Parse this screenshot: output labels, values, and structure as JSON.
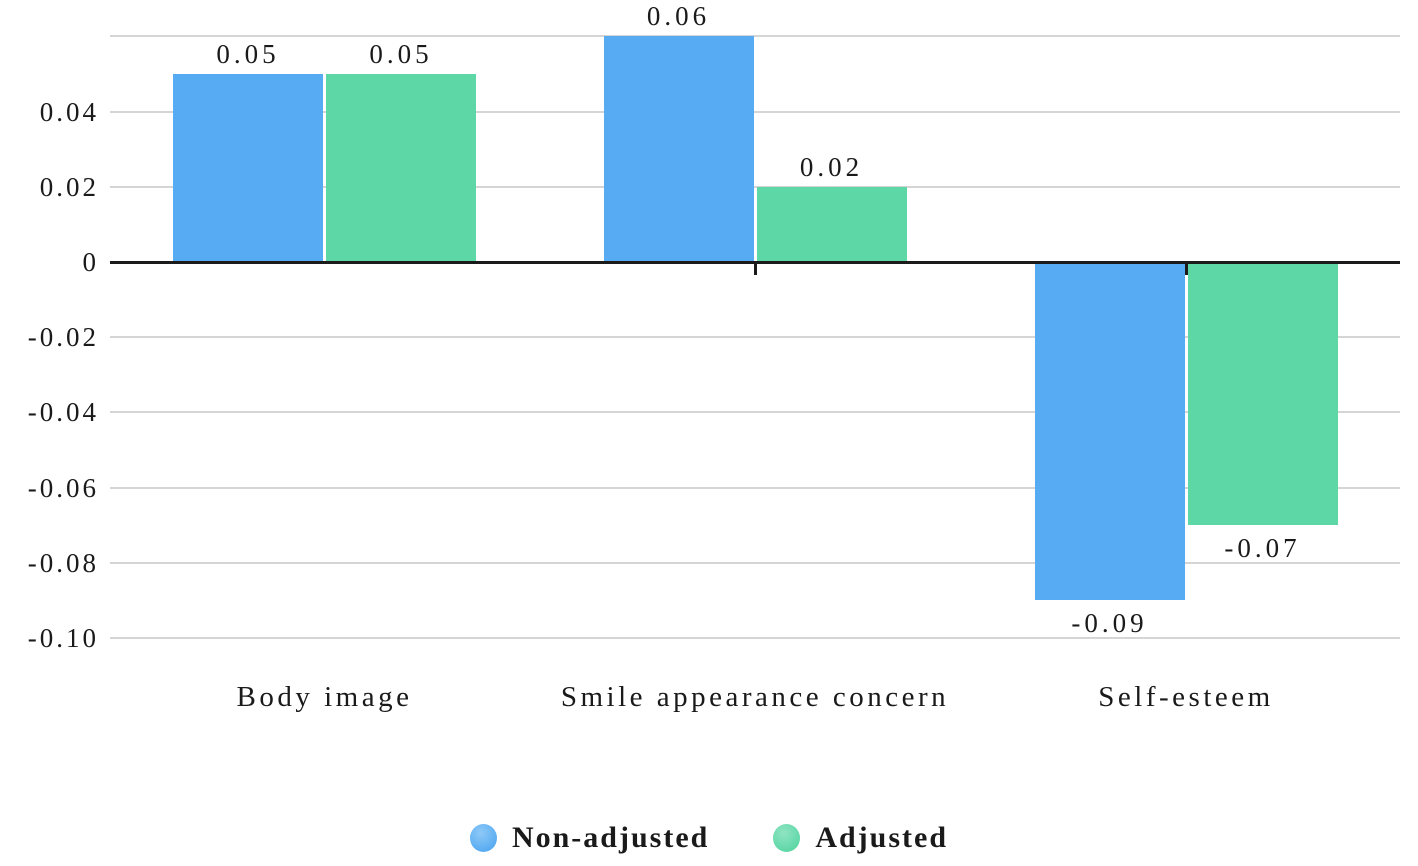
{
  "chart_data": {
    "type": "bar",
    "title": "",
    "xlabel": "",
    "ylabel": "",
    "categories": [
      "Body image",
      "Smile appearance concern",
      "Self-esteem"
    ],
    "series": [
      {
        "name": "Non-adjusted",
        "color": "#57abf2",
        "color_light": "#8ec9f7",
        "values": [
          0.05,
          0.06,
          -0.09
        ]
      },
      {
        "name": "Adjusted",
        "color": "#5dd7a6",
        "color_light": "#8fe4c2",
        "values": [
          0.05,
          0.02,
          -0.07
        ]
      }
    ],
    "value_labels": [
      [
        "0.05",
        "0.06",
        "-0.09"
      ],
      [
        "0.05",
        "0.02",
        "-0.07"
      ]
    ],
    "y_axis": {
      "tick_labels": [
        "0.04",
        "0.02",
        "0",
        "-0.02",
        "-0.04",
        "-0.06",
        "-0.08",
        "-0.10"
      ],
      "tick_values": [
        0.04,
        0.02,
        0,
        -0.02,
        -0.04,
        -0.06,
        -0.08,
        -0.1
      ],
      "gridline_values": [
        0.06,
        0.04,
        0.02,
        -0.02,
        -0.04,
        -0.06,
        -0.08,
        -0.1
      ],
      "ylim": [
        -0.107,
        0.06
      ]
    },
    "grid": true,
    "legend": {
      "position": "bottom-center",
      "entries": [
        {
          "label": "Non-adjusted",
          "color": "#57abf2",
          "color_light": "#8ec9f7"
        },
        {
          "label": "Adjusted",
          "color": "#5dd7a6",
          "color_light": "#8fe4c2"
        }
      ]
    },
    "colors": {
      "gridline": "#d5d5d5",
      "zero_axis": "#1b1b1b",
      "text": "#1a1a1a",
      "background": "#ffffff"
    }
  }
}
